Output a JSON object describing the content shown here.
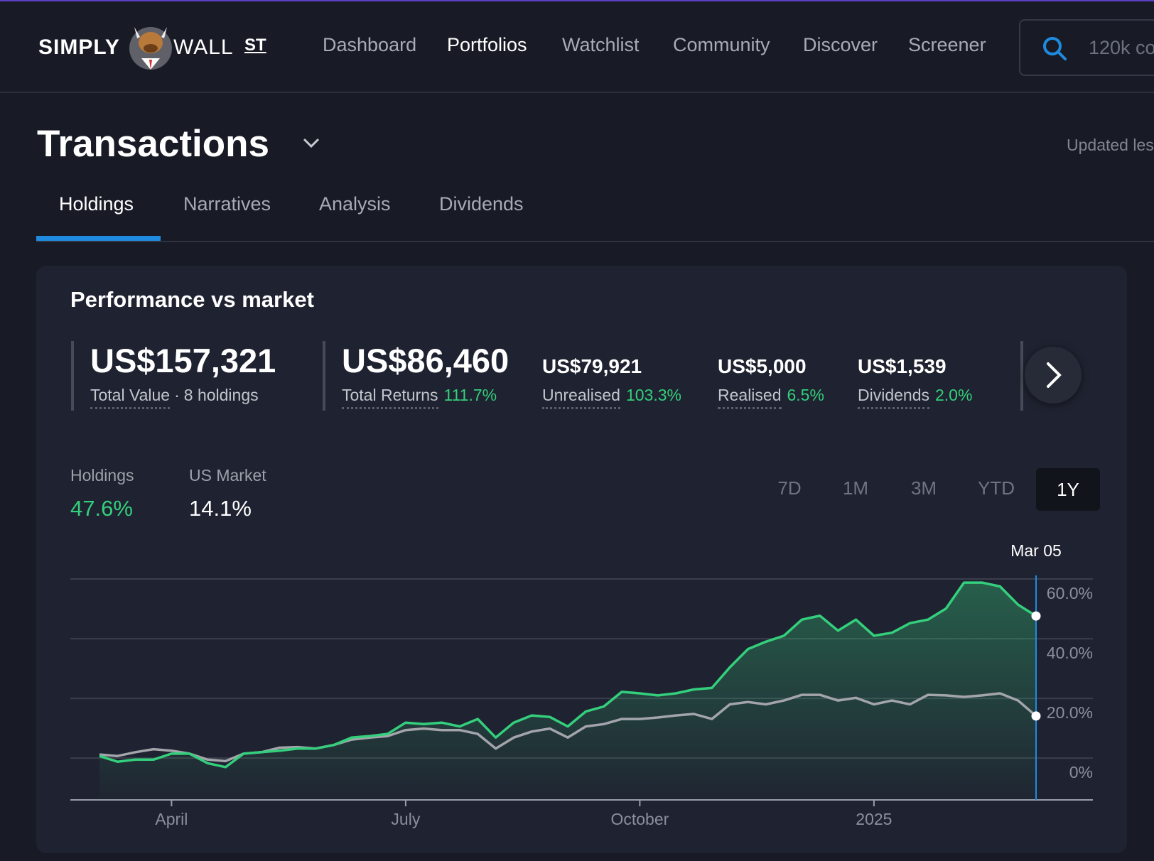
{
  "nav": {
    "logo": {
      "left": "SIMPLY",
      "right": "WALL",
      "suffix": "ST"
    },
    "links": [
      "Dashboard",
      "Portfolios",
      "Watchlist",
      "Community",
      "Discover",
      "Screener"
    ],
    "active": "Portfolios",
    "search_placeholder": "120k co"
  },
  "page": {
    "title": "Transactions",
    "updated": "Updated les"
  },
  "tabs": {
    "items": [
      "Holdings",
      "Narratives",
      "Analysis",
      "Dividends"
    ],
    "active": "Holdings"
  },
  "card": {
    "title": "Performance vs market",
    "stats": [
      {
        "value": "US$157,321",
        "label": "Total Value",
        "note": "8 holdings"
      },
      {
        "value": "US$86,460",
        "label": "Total Returns",
        "change": "111.7%"
      },
      {
        "value": "US$79,921",
        "label": "Unrealised",
        "change": "103.3%"
      },
      {
        "value": "US$5,000",
        "label": "Realised",
        "change": "6.5%"
      },
      {
        "value": "US$1,539",
        "label": "Dividends",
        "change": "2.0%"
      }
    ],
    "returns": [
      "47.6%",
      "14.1%"
    ],
    "ranges": [
      "7D",
      "1M",
      "3M",
      "YTD",
      "1Y"
    ],
    "active_range": "1Y"
  },
  "chart_data": {
    "type": "line",
    "categories": [
      null,
      null,
      null,
      null,
      "April",
      null,
      null,
      null,
      null,
      null,
      null,
      null,
      null,
      null,
      null,
      null,
      null,
      "July",
      null,
      null,
      null,
      null,
      null,
      null,
      null,
      null,
      null,
      null,
      null,
      null,
      "October",
      null,
      null,
      null,
      null,
      null,
      null,
      null,
      null,
      null,
      null,
      null,
      null,
      "2025",
      null,
      null,
      null,
      null,
      null,
      null,
      null,
      null,
      "Mar 05"
    ],
    "series": [
      {
        "name": "Holdings",
        "color": "#34cf7c",
        "values": [
          0.7,
          -1.2,
          -0.5,
          -0.5,
          1.5,
          1.5,
          -1.7,
          -3,
          1.5,
          2,
          2.5,
          3.2,
          3.2,
          4.4,
          6.9,
          7.4,
          8.1,
          11.9,
          11.4,
          11.9,
          10.6,
          13.1,
          6.9,
          11.9,
          14.3,
          13.8,
          10.6,
          15.6,
          17.3,
          22.2,
          21.7,
          21,
          21.7,
          23,
          23.5,
          30.4,
          36.5,
          39,
          41,
          46.4,
          47.7,
          42.7,
          46.4,
          41,
          42,
          45.2,
          46.4,
          50.1,
          58.8,
          58.8,
          57.5,
          51.4,
          47.6
        ]
      },
      {
        "name": "US Market",
        "color": "#a3a5ab",
        "values": [
          1.2,
          0.7,
          2,
          3,
          2.5,
          1.5,
          -0.5,
          -1,
          1.5,
          2,
          3.5,
          3.7,
          3.2,
          4.4,
          6.2,
          6.9,
          7.4,
          9.4,
          9.9,
          9.4,
          9.4,
          8.1,
          3.2,
          6.9,
          8.9,
          9.9,
          6.9,
          10.6,
          11.4,
          13.1,
          13.1,
          13.6,
          14.3,
          14.8,
          13.1,
          18,
          18.8,
          18,
          19.3,
          21.2,
          21.2,
          19.3,
          20.2,
          18,
          19.3,
          18,
          21.2,
          21,
          20.5,
          21,
          21.7,
          19.3,
          14.1
        ]
      }
    ],
    "ylim": [
      -14,
      65
    ],
    "yticks": [
      {
        "value": 0,
        "label": "0%"
      },
      {
        "value": 20,
        "label": "20.0%"
      },
      {
        "value": 40,
        "label": "40.0%"
      },
      {
        "value": 60,
        "label": "60.0%"
      }
    ],
    "grid": true
  }
}
